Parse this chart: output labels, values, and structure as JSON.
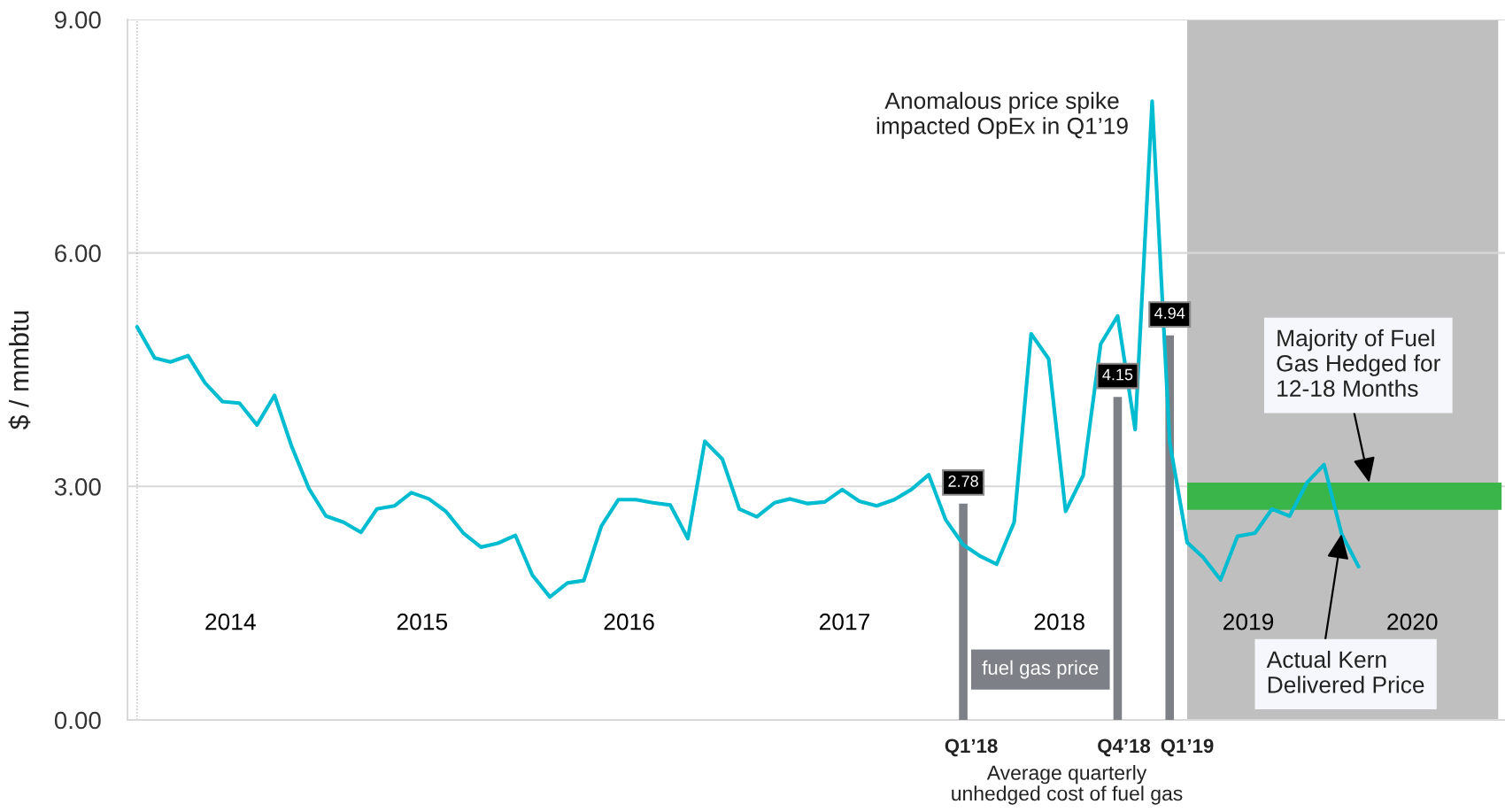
{
  "chart_data": {
    "type": "line",
    "ylabel": "$ / mmbtu",
    "xlim": [
      "2013-12-15",
      "2020-08-16"
    ],
    "xticks": [
      {
        "value": "2014-06-15",
        "label": "2014"
      },
      {
        "value": "2015-05-20",
        "label": "2015"
      },
      {
        "value": "2016-05-20",
        "label": "2016"
      },
      {
        "value": "2017-06-05",
        "label": "2017"
      },
      {
        "value": "2018-06-20",
        "label": "2018"
      },
      {
        "value": "2019-05-20",
        "label": "2019"
      },
      {
        "value": "2020-03-05",
        "label": "2020"
      }
    ],
    "ylim": [
      0,
      9
    ],
    "yticks": [
      {
        "value": 0,
        "label": "0.00"
      },
      {
        "value": 3,
        "label": "3.00"
      },
      {
        "value": 6,
        "label": "6.00"
      },
      {
        "value": 9,
        "label": "9.00"
      }
    ],
    "grid": "y",
    "bands": [
      {
        "axis": "x",
        "from": "2019-02",
        "to": "2020-08-04",
        "color": "#bfbfbf"
      }
    ],
    "ref_lines": [
      {
        "axis": "x",
        "value": "2014-01",
        "color": "#b3b3b3",
        "line_style": "dotted"
      }
    ],
    "series": [
      {
        "x": [
          "2019-02",
          "2020-08-10"
        ],
        "values": [
          null,
          null
        ],
        "lower": [
          2.7,
          2.7
        ],
        "upper": [
          3.05,
          3.05
        ],
        "color": "#39b54a"
      },
      {
        "type": "bar",
        "name": "fuel gas price",
        "x": [
          "2018-01",
          "2018-10",
          "2019-01"
        ],
        "values": [
          2.78,
          4.15,
          4.94
        ],
        "value_labels": [
          "2.78",
          "4.15",
          "4.94"
        ],
        "color": "#7d8187"
      },
      {
        "color": "#00bcd0",
        "x": [
          "2014-01",
          "2014-02",
          "2014-03",
          "2014-04",
          "2014-05",
          "2014-06",
          "2014-07",
          "2014-08",
          "2014-09",
          "2014-10",
          "2014-11",
          "2014-12",
          "2015-01",
          "2015-02",
          "2015-03",
          "2015-04",
          "2015-05",
          "2015-06",
          "2015-07",
          "2015-08",
          "2015-09",
          "2015-10",
          "2015-11",
          "2015-12",
          "2016-01",
          "2016-02",
          "2016-03",
          "2016-04",
          "2016-05",
          "2016-06",
          "2016-07",
          "2016-08",
          "2016-09",
          "2016-10",
          "2016-11",
          "2016-12",
          "2017-01",
          "2017-02",
          "2017-03",
          "2017-04",
          "2017-05",
          "2017-06",
          "2017-07",
          "2017-08",
          "2017-09",
          "2017-10",
          "2017-11",
          "2017-12",
          "2018-01",
          "2018-02",
          "2018-03",
          "2018-04",
          "2018-05",
          "2018-06",
          "2018-07",
          "2018-08",
          "2018-09",
          "2018-10",
          "2018-11",
          "2018-12",
          "2019-01",
          "2019-02",
          "2019-03",
          "2019-04",
          "2019-05",
          "2019-06",
          "2019-07",
          "2019-08",
          "2019-09",
          "2019-10",
          "2019-11",
          "2019-12"
        ],
        "values": [
          5.05,
          4.65,
          4.6,
          4.68,
          4.33,
          4.09,
          4.07,
          3.79,
          4.17,
          3.52,
          2.97,
          2.62,
          2.54,
          2.41,
          2.71,
          2.75,
          2.92,
          2.84,
          2.68,
          2.4,
          2.22,
          2.27,
          2.37,
          1.86,
          1.58,
          1.76,
          1.79,
          2.49,
          2.83,
          2.83,
          2.79,
          2.76,
          2.33,
          3.58,
          3.35,
          2.71,
          2.61,
          2.79,
          2.84,
          2.78,
          2.8,
          2.96,
          2.81,
          2.75,
          2.83,
          2.96,
          3.15,
          2.57,
          2.25,
          2.1,
          2.0,
          2.54,
          4.96,
          4.64,
          2.68,
          3.14,
          4.83,
          5.19,
          3.73,
          7.95,
          3.57,
          2.28,
          2.09,
          1.8,
          2.36,
          2.4,
          2.71,
          2.62,
          3.05,
          3.28,
          2.39,
          1.97
        ]
      }
    ],
    "annotations": [
      {
        "text": "Anomalous price spike\nimpacted OpEx in Q1’19",
        "x": "2018-12",
        "y": 7.95
      },
      {
        "text": "Majority of Fuel\nGas Hedged for\n12-18 Months",
        "x": "2019-12-20",
        "y": 3.05
      },
      {
        "text": "Actual Kern\nDelivered Price",
        "x": "2019-11",
        "y": 2.39
      },
      {
        "text": "Q1’18",
        "x": "2018-01-15",
        "y": 0
      },
      {
        "text": "Q4’18",
        "x": "2018-10-12",
        "y": 0
      },
      {
        "text": "Q1’19",
        "x": "2019-02",
        "y": 0
      },
      "Average quarterly\nunhedged cost of fuel gas"
    ]
  }
}
